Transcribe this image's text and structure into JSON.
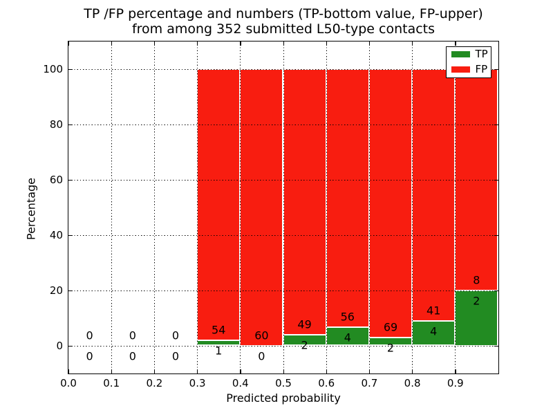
{
  "chart_data": {
    "type": "bar",
    "stacked": true,
    "title_line1": "TP /FP percentage and numbers (TP-bottom value, FP-upper)",
    "title_line2": "from among 352 submitted L50-type contacts",
    "xlabel": "Predicted probability",
    "ylabel": "Percentage",
    "xlim": [
      0.0,
      1.0
    ],
    "ylim": [
      -10,
      110
    ],
    "grid": true,
    "grid_style": "dotted",
    "legend_position": "upper right",
    "total_contacts": 352,
    "colors": {
      "tp": "#228b22",
      "fp": "#f81d10",
      "bar_edge": "#ffffff"
    },
    "legend": [
      {
        "name": "TP",
        "color": "#228b22"
      },
      {
        "name": "FP",
        "color": "#f81d10"
      }
    ],
    "xticks": [
      {
        "v": 0.0,
        "label": "0.0"
      },
      {
        "v": 0.1,
        "label": "0.1"
      },
      {
        "v": 0.2,
        "label": "0.2"
      },
      {
        "v": 0.3,
        "label": "0.3"
      },
      {
        "v": 0.4,
        "label": "0.4"
      },
      {
        "v": 0.5,
        "label": "0.5"
      },
      {
        "v": 0.6,
        "label": "0.6"
      },
      {
        "v": 0.7,
        "label": "0.7"
      },
      {
        "v": 0.8,
        "label": "0.8"
      },
      {
        "v": 0.9,
        "label": "0.9"
      }
    ],
    "yticks": [
      {
        "v": 0,
        "label": "0"
      },
      {
        "v": 20,
        "label": "20"
      },
      {
        "v": 40,
        "label": "40"
      },
      {
        "v": 60,
        "label": "60"
      },
      {
        "v": 80,
        "label": "80"
      },
      {
        "v": 100,
        "label": "100"
      }
    ],
    "bins": [
      {
        "x0": 0.0,
        "x1": 0.1,
        "tp_count": 0,
        "fp_count": 0,
        "tp_pct": 0,
        "fp_pct": 0
      },
      {
        "x0": 0.1,
        "x1": 0.2,
        "tp_count": 0,
        "fp_count": 0,
        "tp_pct": 0,
        "fp_pct": 0
      },
      {
        "x0": 0.2,
        "x1": 0.3,
        "tp_count": 0,
        "fp_count": 0,
        "tp_pct": 0,
        "fp_pct": 0
      },
      {
        "x0": 0.3,
        "x1": 0.4,
        "tp_count": 1,
        "fp_count": 54,
        "tp_pct": 1.82,
        "fp_pct": 98.18
      },
      {
        "x0": 0.4,
        "x1": 0.5,
        "tp_count": 0,
        "fp_count": 60,
        "tp_pct": 0,
        "fp_pct": 100
      },
      {
        "x0": 0.5,
        "x1": 0.6,
        "tp_count": 2,
        "fp_count": 49,
        "tp_pct": 3.92,
        "fp_pct": 96.08
      },
      {
        "x0": 0.6,
        "x1": 0.7,
        "tp_count": 4,
        "fp_count": 56,
        "tp_pct": 6.67,
        "fp_pct": 93.33
      },
      {
        "x0": 0.7,
        "x1": 0.8,
        "tp_count": 2,
        "fp_count": 69,
        "tp_pct": 2.82,
        "fp_pct": 97.18
      },
      {
        "x0": 0.8,
        "x1": 0.9,
        "tp_count": 4,
        "fp_count": 41,
        "tp_pct": 8.89,
        "fp_pct": 91.11
      },
      {
        "x0": 0.9,
        "x1": 1.0,
        "tp_count": 2,
        "fp_count": 8,
        "tp_pct": 20.0,
        "fp_pct": 80.0
      }
    ]
  }
}
